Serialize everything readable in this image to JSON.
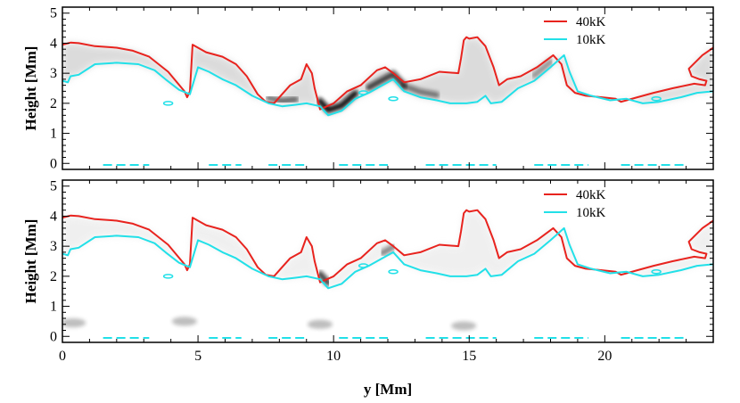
{
  "chart_data": [
    {
      "type": "line",
      "ylabel": "Height [Mm]",
      "xlim": [
        0,
        24
      ],
      "ylim": [
        -0.2,
        5.2
      ],
      "xticks": [
        "0",
        "5",
        "10",
        "15",
        "20"
      ],
      "yticks": [
        "0",
        "1",
        "2",
        "3",
        "4",
        "5"
      ],
      "background": "grayscale density image (dark intensity along the transition region)",
      "legend": {
        "position": "top-right"
      },
      "series": [
        {
          "name": "40kK",
          "color": "#e8231e",
          "x": [
            0,
            0.3,
            0.6,
            1.2,
            2.0,
            2.6,
            3.2,
            3.9,
            4.5,
            4.6,
            4.7,
            4.8,
            5.3,
            5.9,
            6.4,
            6.8,
            7.2,
            7.5,
            7.8,
            8.1,
            8.4,
            8.8,
            9.0,
            9.2,
            9.3,
            9.5,
            10.0,
            10.5,
            11.0,
            11.6,
            11.9,
            12.2,
            12.6,
            13.2,
            13.9,
            14.6,
            14.7,
            14.8,
            14.9,
            15.0,
            15.3,
            15.6,
            15.9,
            16.1,
            16.4,
            16.9,
            17.5,
            18.1,
            18.4,
            18.6,
            18.9,
            19.3,
            19.9,
            20.4,
            20.6,
            20.8,
            21.2,
            21.8,
            22.5,
            23.3,
            23.7,
            23.75,
            23.5,
            23.2,
            23.1,
            23.6,
            24.0
          ],
          "y": [
            3.95,
            4.02,
            4.0,
            3.9,
            3.85,
            3.75,
            3.55,
            3.05,
            2.4,
            2.2,
            2.4,
            3.95,
            3.7,
            3.55,
            3.3,
            2.9,
            2.3,
            2.05,
            2.0,
            2.3,
            2.6,
            2.8,
            3.3,
            3.0,
            2.5,
            1.8,
            2.0,
            2.4,
            2.6,
            3.1,
            3.2,
            3.0,
            2.7,
            2.8,
            3.05,
            3.0,
            3.5,
            4.1,
            4.2,
            4.15,
            4.2,
            3.9,
            3.2,
            2.6,
            2.8,
            2.9,
            3.2,
            3.6,
            3.3,
            2.6,
            2.35,
            2.25,
            2.2,
            2.15,
            2.05,
            2.1,
            2.2,
            2.35,
            2.5,
            2.65,
            2.6,
            2.75,
            2.8,
            2.9,
            3.15,
            3.6,
            3.85
          ]
        },
        {
          "name": "10kK",
          "color": "#22e0e8",
          "x": [
            0,
            0.2,
            0.3,
            0.6,
            1.2,
            2.0,
            2.8,
            3.4,
            3.8,
            4.3,
            4.7,
            5.0,
            5.4,
            5.9,
            6.4,
            7.0,
            7.6,
            8.1,
            8.6,
            9.0,
            9.5,
            9.8,
            10.3,
            10.8,
            11.3,
            11.8,
            12.2,
            12.6,
            13.2,
            13.8,
            14.3,
            14.9,
            15.3,
            15.6,
            15.8,
            16.2,
            16.8,
            17.4,
            18.0,
            18.5,
            18.7,
            19.0,
            19.5,
            20.2,
            20.8,
            21.4,
            22.0,
            22.8,
            23.4,
            24.0
          ],
          "y": [
            2.75,
            2.7,
            2.9,
            2.95,
            3.3,
            3.35,
            3.3,
            3.1,
            2.8,
            2.45,
            2.3,
            3.2,
            3.05,
            2.8,
            2.6,
            2.25,
            2.0,
            1.9,
            1.95,
            2.0,
            1.9,
            1.6,
            1.75,
            2.15,
            2.35,
            2.6,
            2.8,
            2.4,
            2.2,
            2.1,
            2.0,
            2.0,
            2.05,
            2.25,
            2.0,
            2.05,
            2.5,
            2.75,
            3.2,
            3.6,
            3.05,
            2.4,
            2.25,
            2.1,
            2.15,
            2.0,
            2.05,
            2.2,
            2.35,
            2.4
          ]
        }
      ]
    },
    {
      "type": "line",
      "ylabel": "Height [Mm]",
      "xlabel": "y [Mm]",
      "xlim": [
        0,
        24
      ],
      "ylim": [
        -0.2,
        5.2
      ],
      "xticks": [
        "0",
        "5",
        "10",
        "15",
        "20"
      ],
      "yticks": [
        "0",
        "1",
        "2",
        "3",
        "4",
        "5"
      ],
      "background": "grayscale density image (lighter, dark only near cusp at y≈9.5 Mm)",
      "legend": {
        "position": "top-right"
      },
      "series": [
        {
          "name": "40kK",
          "color": "#e8231e",
          "x": [
            0,
            0.3,
            0.6,
            1.2,
            2.0,
            2.6,
            3.2,
            3.9,
            4.5,
            4.6,
            4.7,
            4.8,
            5.3,
            5.9,
            6.4,
            6.8,
            7.2,
            7.5,
            7.8,
            8.1,
            8.4,
            8.8,
            9.0,
            9.2,
            9.3,
            9.5,
            10.0,
            10.5,
            11.0,
            11.6,
            11.9,
            12.2,
            12.6,
            13.2,
            13.9,
            14.6,
            14.7,
            14.8,
            14.9,
            15.0,
            15.3,
            15.6,
            15.9,
            16.1,
            16.4,
            16.9,
            17.5,
            18.1,
            18.4,
            18.6,
            18.9,
            19.3,
            19.9,
            20.4,
            20.6,
            20.8,
            21.2,
            21.8,
            22.5,
            23.3,
            23.7,
            23.75,
            23.5,
            23.2,
            23.1,
            23.6,
            24.0
          ],
          "y": [
            3.95,
            4.02,
            4.0,
            3.9,
            3.85,
            3.75,
            3.55,
            3.05,
            2.4,
            2.2,
            2.4,
            3.95,
            3.7,
            3.55,
            3.3,
            2.9,
            2.3,
            2.05,
            2.0,
            2.3,
            2.6,
            2.8,
            3.3,
            3.0,
            2.5,
            1.8,
            2.0,
            2.4,
            2.6,
            3.1,
            3.2,
            3.0,
            2.7,
            2.8,
            3.05,
            3.0,
            3.5,
            4.1,
            4.2,
            4.15,
            4.2,
            3.9,
            3.2,
            2.6,
            2.8,
            2.9,
            3.2,
            3.6,
            3.3,
            2.6,
            2.35,
            2.25,
            2.2,
            2.15,
            2.05,
            2.1,
            2.2,
            2.35,
            2.5,
            2.65,
            2.6,
            2.75,
            2.8,
            2.9,
            3.15,
            3.6,
            3.85
          ]
        },
        {
          "name": "10kK",
          "color": "#22e0e8",
          "x": [
            0,
            0.2,
            0.3,
            0.6,
            1.2,
            2.0,
            2.8,
            3.4,
            3.8,
            4.3,
            4.7,
            5.0,
            5.4,
            5.9,
            6.4,
            7.0,
            7.6,
            8.1,
            8.6,
            9.0,
            9.5,
            9.8,
            10.3,
            10.8,
            11.3,
            11.8,
            12.2,
            12.6,
            13.2,
            13.8,
            14.3,
            14.9,
            15.3,
            15.6,
            15.8,
            16.2,
            16.8,
            17.4,
            18.0,
            18.5,
            18.7,
            19.0,
            19.5,
            20.2,
            20.8,
            21.4,
            22.0,
            22.8,
            23.4,
            24.0
          ],
          "y": [
            2.75,
            2.7,
            2.9,
            2.95,
            3.3,
            3.35,
            3.3,
            3.1,
            2.8,
            2.45,
            2.3,
            3.2,
            3.05,
            2.8,
            2.6,
            2.25,
            2.0,
            1.9,
            1.95,
            2.0,
            1.9,
            1.6,
            1.75,
            2.15,
            2.35,
            2.6,
            2.8,
            2.4,
            2.2,
            2.1,
            2.0,
            2.0,
            2.05,
            2.25,
            2.0,
            2.05,
            2.5,
            2.75,
            3.2,
            3.6,
            3.05,
            2.4,
            2.25,
            2.1,
            2.15,
            2.0,
            2.05,
            2.2,
            2.35,
            2.4
          ]
        }
      ]
    }
  ]
}
